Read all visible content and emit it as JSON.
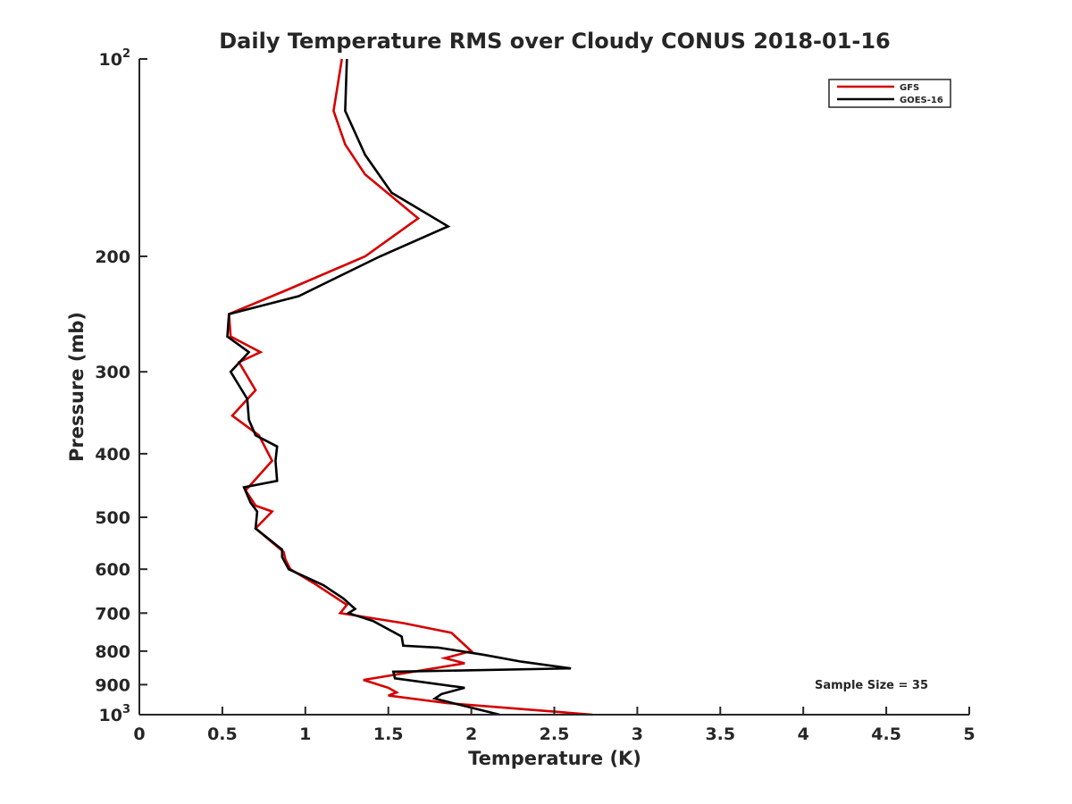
{
  "chart_data": {
    "type": "line",
    "title": "Daily Temperature RMS over Cloudy CONUS 2018-01-16",
    "xlabel": "Temperature (K)",
    "ylabel": "Pressure (mb)",
    "xlim": [
      0,
      5
    ],
    "ylim": [
      100,
      1000
    ],
    "y_scale": "log",
    "y_reversed": true,
    "x_ticks": [
      0,
      0.5,
      1,
      1.5,
      2,
      2.5,
      3,
      3.5,
      4,
      4.5,
      5
    ],
    "x_tick_labels": [
      "0",
      "0.5",
      "1",
      "1.5",
      "2",
      "2.5",
      "3",
      "3.5",
      "4",
      "4.5",
      "5"
    ],
    "y_ticks": [
      {
        "value": 100,
        "base": "10",
        "exp": "2"
      },
      {
        "value": 200,
        "label": "200"
      },
      {
        "value": 300,
        "label": "300"
      },
      {
        "value": 400,
        "label": "400"
      },
      {
        "value": 500,
        "label": "500"
      },
      {
        "value": 600,
        "label": "600"
      },
      {
        "value": 700,
        "label": "700"
      },
      {
        "value": 800,
        "label": "800"
      },
      {
        "value": 900,
        "label": "900"
      },
      {
        "value": 1000,
        "base": "10",
        "exp": "3"
      }
    ],
    "grid": false,
    "legend_position": "top-right",
    "annotation": "Sample Size = 35",
    "series": [
      {
        "name": "GFS",
        "color": "#d40000",
        "points": [
          [
            1.22,
            100
          ],
          [
            1.17,
            120
          ],
          [
            1.24,
            135
          ],
          [
            1.36,
            150
          ],
          [
            1.68,
            175
          ],
          [
            1.36,
            200
          ],
          [
            0.89,
            225
          ],
          [
            0.54,
            245
          ],
          [
            0.55,
            265
          ],
          [
            0.73,
            280
          ],
          [
            0.6,
            290
          ],
          [
            0.7,
            320
          ],
          [
            0.56,
            350
          ],
          [
            0.72,
            375
          ],
          [
            0.8,
            410
          ],
          [
            0.64,
            455
          ],
          [
            0.7,
            480
          ],
          [
            0.8,
            490
          ],
          [
            0.7,
            520
          ],
          [
            0.87,
            565
          ],
          [
            0.88,
            580
          ],
          [
            0.91,
            600
          ],
          [
            1.05,
            630
          ],
          [
            1.25,
            680
          ],
          [
            1.21,
            700
          ],
          [
            1.59,
            725
          ],
          [
            1.88,
            750
          ],
          [
            2.0,
            800
          ],
          [
            1.84,
            820
          ],
          [
            1.96,
            835
          ],
          [
            1.35,
            885
          ],
          [
            1.5,
            910
          ],
          [
            1.55,
            925
          ],
          [
            1.5,
            935
          ],
          [
            1.85,
            960
          ],
          [
            2.73,
            1000
          ]
        ]
      },
      {
        "name": "GOES-16",
        "color": "#000000",
        "points": [
          [
            1.25,
            100
          ],
          [
            1.24,
            120
          ],
          [
            1.36,
            140
          ],
          [
            1.52,
            160
          ],
          [
            1.86,
            180
          ],
          [
            1.45,
            200
          ],
          [
            0.96,
            230
          ],
          [
            0.54,
            245
          ],
          [
            0.53,
            265
          ],
          [
            0.66,
            280
          ],
          [
            0.55,
            300
          ],
          [
            0.65,
            330
          ],
          [
            0.66,
            355
          ],
          [
            0.7,
            375
          ],
          [
            0.83,
            390
          ],
          [
            0.82,
            410
          ],
          [
            0.83,
            440
          ],
          [
            0.63,
            450
          ],
          [
            0.67,
            475
          ],
          [
            0.71,
            490
          ],
          [
            0.7,
            520
          ],
          [
            0.86,
            560
          ],
          [
            0.86,
            575
          ],
          [
            0.9,
            600
          ],
          [
            1.11,
            635
          ],
          [
            1.15,
            645
          ],
          [
            1.23,
            665
          ],
          [
            1.3,
            690
          ],
          [
            1.26,
            700
          ],
          [
            1.41,
            720
          ],
          [
            1.58,
            760
          ],
          [
            1.59,
            785
          ],
          [
            1.8,
            790
          ],
          [
            2.07,
            810
          ],
          [
            2.3,
            830
          ],
          [
            2.6,
            850
          ],
          [
            1.53,
            860
          ],
          [
            1.54,
            880
          ],
          [
            1.96,
            910
          ],
          [
            1.82,
            930
          ],
          [
            1.78,
            945
          ],
          [
            2.17,
            1000
          ]
        ]
      }
    ]
  }
}
